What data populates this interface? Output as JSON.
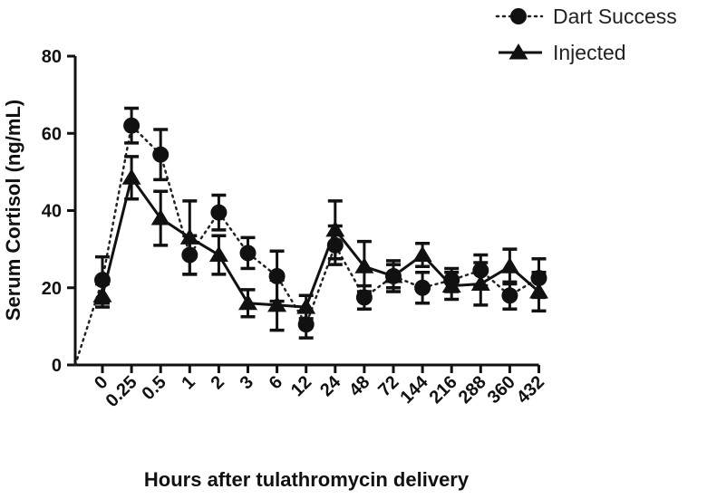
{
  "chart_data": {
    "type": "line",
    "title": "",
    "xlabel": "Hours after tulathromycin delivery",
    "ylabel": "Serum Cortisol (ng/mL)",
    "categories": [
      "0",
      "0.25",
      "0.5",
      "1",
      "2",
      "3",
      "6",
      "12",
      "24",
      "48",
      "72",
      "144",
      "216",
      "288",
      "360",
      "432"
    ],
    "ylim": [
      0,
      80
    ],
    "yticks": [
      "0",
      "20",
      "40",
      "60",
      "80"
    ],
    "grid": false,
    "legend_position": "top-right",
    "series": [
      {
        "name": "Dart Success",
        "marker": "circle",
        "line_style": "dotted",
        "values": [
          22,
          62,
          54.5,
          28.5,
          39.5,
          29,
          23,
          10.5,
          31,
          17.5,
          23,
          20,
          22,
          24.5,
          18,
          22.5
        ],
        "error": [
          6,
          4.5,
          6.5,
          5,
          4.5,
          4,
          6.5,
          3.5,
          5,
          3,
          4,
          4,
          3,
          4,
          3.5,
          5
        ]
      },
      {
        "name": "Injected",
        "marker": "triangle",
        "line_style": "solid",
        "values": [
          18,
          48.5,
          38,
          33,
          28.5,
          16,
          15.5,
          15,
          35,
          25.5,
          23,
          28.5,
          20.5,
          21,
          25.5,
          19
        ],
        "error": [
          3,
          5.5,
          7,
          9.5,
          5,
          3.5,
          6.5,
          3,
          7.5,
          6.5,
          3,
          3,
          3.5,
          5.5,
          4.5,
          5
        ]
      }
    ]
  }
}
